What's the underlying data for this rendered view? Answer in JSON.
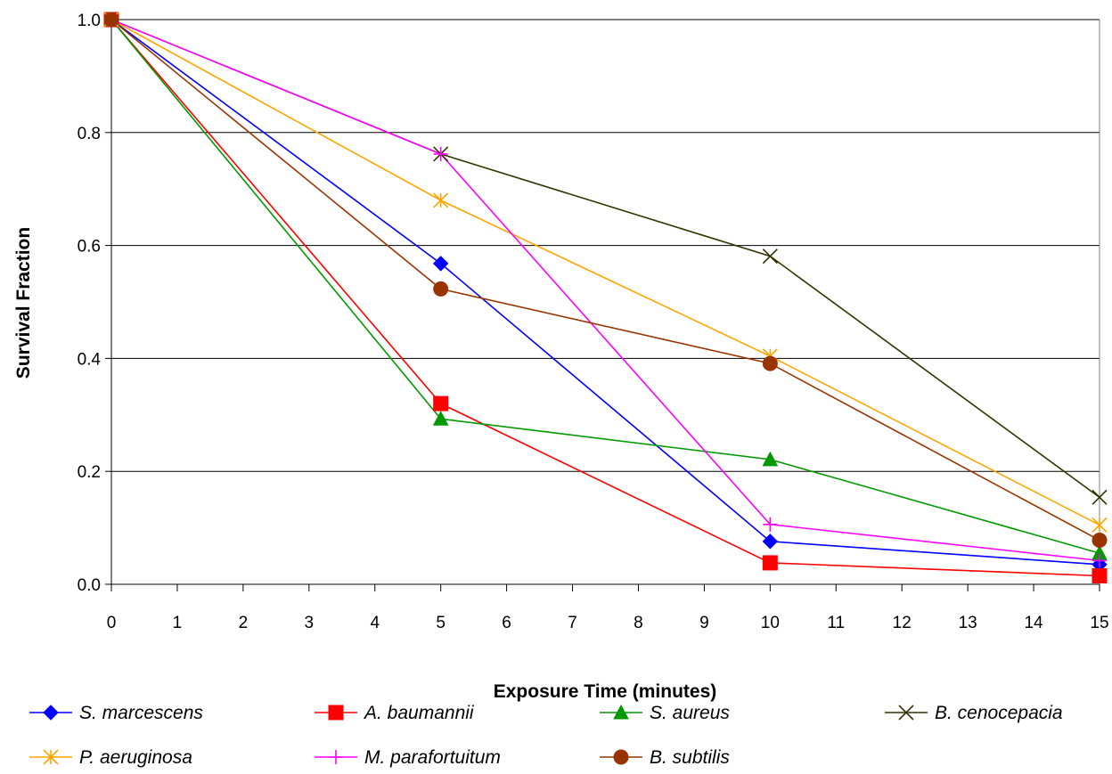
{
  "chart_data": {
    "type": "line",
    "title": "",
    "xlabel": "Exposure Time (minutes)",
    "ylabel": "Survival Fraction",
    "xlim": [
      0,
      15
    ],
    "ylim": [
      0,
      1.0
    ],
    "x_ticks": [
      "0",
      "1",
      "2",
      "3",
      "4",
      "5",
      "6",
      "7",
      "8",
      "9",
      "10",
      "11",
      "12",
      "13",
      "14",
      "15"
    ],
    "y_ticks": [
      "0.0",
      "0.2",
      "0.4",
      "0.6",
      "0.8",
      "1.0"
    ],
    "grid": "horizontal",
    "legend_position": "bottom",
    "x": [
      0,
      5,
      10,
      15
    ],
    "series": [
      {
        "name": "S. marcescens",
        "values": [
          1.0,
          0.568,
          0.076,
          0.035
        ],
        "color": "#0000ff",
        "marker": "diamond"
      },
      {
        "name": "A. baumannii",
        "values": [
          1.0,
          0.32,
          0.038,
          0.015
        ],
        "color": "#ff0000",
        "marker": "square"
      },
      {
        "name": "S. aureus",
        "values": [
          1.0,
          0.293,
          0.221,
          0.055
        ],
        "color": "#009900",
        "marker": "triangle"
      },
      {
        "name": "B. cenocepacia",
        "values": [
          1.0,
          0.762,
          0.581,
          0.154
        ],
        "color": "#333300",
        "marker": "x"
      },
      {
        "name": "P. aeruginosa",
        "values": [
          1.0,
          0.68,
          0.404,
          0.105
        ],
        "color": "#ffa500",
        "marker": "star"
      },
      {
        "name": "M. parafortuitum",
        "values": [
          1.0,
          0.762,
          0.106,
          0.042
        ],
        "color": "#ff00ff",
        "marker": "plus"
      },
      {
        "name": "B. subtilis",
        "values": [
          1.0,
          0.523,
          0.391,
          0.078
        ],
        "color": "#993300",
        "marker": "circle"
      }
    ]
  }
}
